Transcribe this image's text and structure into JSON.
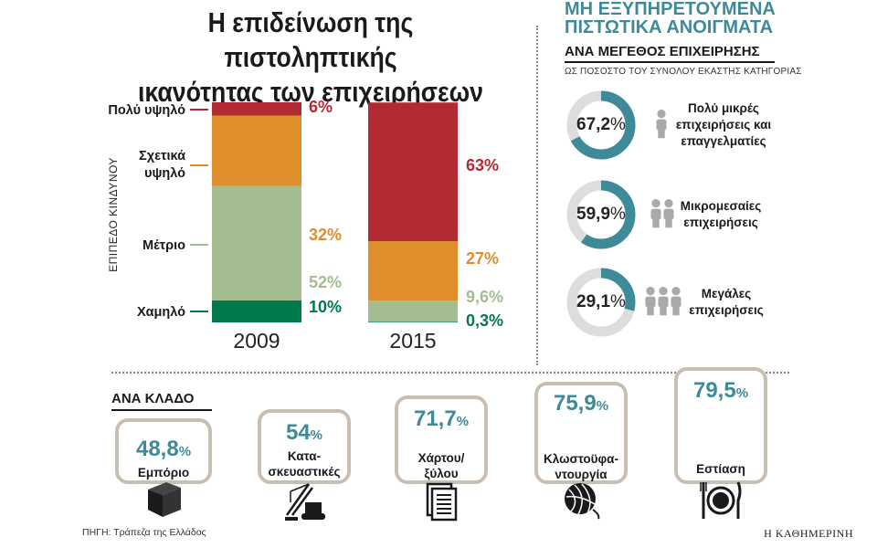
{
  "header": {
    "title_line1": "Η επιδείνωση της πιστοληπτικής",
    "title_line2": "ικανότητας των επιχειρήσεων"
  },
  "colors": {
    "very_high": "#b22a32",
    "high": "#e08e2b",
    "medium": "#a3bd91",
    "low": "#007a4d",
    "teal": "#3f8a99",
    "donut_bg": "#dddddd",
    "box_border": "#c8bfb2"
  },
  "chart_data": [
    {
      "type": "bar",
      "stacked": true,
      "normalized_percent": true,
      "categories": [
        "2009",
        "2015"
      ],
      "ylabel": "ΕΠΙΠΕΔΟ ΚΙΝΔΥΝΟΥ",
      "ylim": [
        0,
        100
      ],
      "series": [
        {
          "name": "Χαμηλό",
          "color": "#007a4d",
          "values": [
            10,
            0.3
          ],
          "labels": [
            "10%",
            "0,3%"
          ]
        },
        {
          "name": "Μέτριο",
          "color": "#a3bd91",
          "values": [
            52,
            9.6
          ],
          "labels": [
            "52%",
            "9,6%"
          ]
        },
        {
          "name": "Σχετικά υψηλό",
          "color": "#e08e2b",
          "values": [
            32,
            27
          ],
          "labels": [
            "32%",
            "27%"
          ]
        },
        {
          "name": "Πολύ υψηλό",
          "color": "#b22a32",
          "values": [
            6,
            63
          ],
          "labels": [
            "6%",
            "63%"
          ]
        }
      ],
      "legend_lines": [
        [
          "Πολύ υψηλό"
        ],
        [
          "Σχετικά",
          "υψηλό"
        ],
        [
          "Μέτριο"
        ],
        [
          "Χαμηλό"
        ]
      ]
    },
    {
      "type": "pie",
      "variant": "donut",
      "title": "ΜΗ ΕΞΥΠΗΡΕΤΟΥΜΕΝΑ ΠΙΣΤΩΤΙΚΑ ΑΝΟΙΓΜΑΤΑ",
      "subtitle": "ΑΝΑ ΜΕΓΕΘΟΣ ΕΠΙΧΕΙΡΗΣΗΣ",
      "note": "ΩΣ ΠΟΣΟΣΤΟ ΤΟΥ ΣΥΝΟΛΟΥ ΕΚΑΣΤΗΣ ΚΑΤΗΓΟΡΙΑΣ",
      "items": [
        {
          "value": 67.2,
          "label": "67,2",
          "pct_sign": "%",
          "name_lines": [
            "Πολύ μικρές",
            "επιχειρήσεις και",
            "επαγγελματίες"
          ],
          "people": 1
        },
        {
          "value": 59.9,
          "label": "59,9",
          "pct_sign": "%",
          "name_lines": [
            "Μικρομεσαίες",
            "επιχειρήσεις"
          ],
          "people": 2
        },
        {
          "value": 29.1,
          "label": "29,1",
          "pct_sign": "%",
          "name_lines": [
            "Μεγάλες",
            "επιχειρήσεις"
          ],
          "people": 3
        }
      ]
    },
    {
      "type": "table",
      "title": "ΑΝΑ ΚΛΑΔΟ",
      "items": [
        {
          "value": 48.8,
          "label": "48,8",
          "pct_sign": "%",
          "name_lines": [
            "Εμπόριο"
          ],
          "icon": "box-icon"
        },
        {
          "value": 54,
          "label": "54",
          "pct_sign": "%",
          "name_lines": [
            "Κατα-",
            "σκευαστικές"
          ],
          "icon": "crane-icon"
        },
        {
          "value": 71.7,
          "label": "71,7",
          "pct_sign": "%",
          "name_lines": [
            "Χάρτου/",
            "ξύλου"
          ],
          "icon": "paper-icon"
        },
        {
          "value": 75.9,
          "label": "75,9",
          "pct_sign": "%",
          "name_lines": [
            "Κλωστοϋφα-",
            "ντουργία"
          ],
          "icon": "yarn-icon"
        },
        {
          "value": 79.5,
          "label": "79,5",
          "pct_sign": "%",
          "name_lines": [
            "Εστίαση"
          ],
          "icon": "dining-icon"
        }
      ]
    }
  ],
  "footer": {
    "source": "ΠΗΓΗ: Τράπεζα της Ελλάδος",
    "brand": "Η ΚΑΘΗΜΕΡΙΝΗ"
  }
}
